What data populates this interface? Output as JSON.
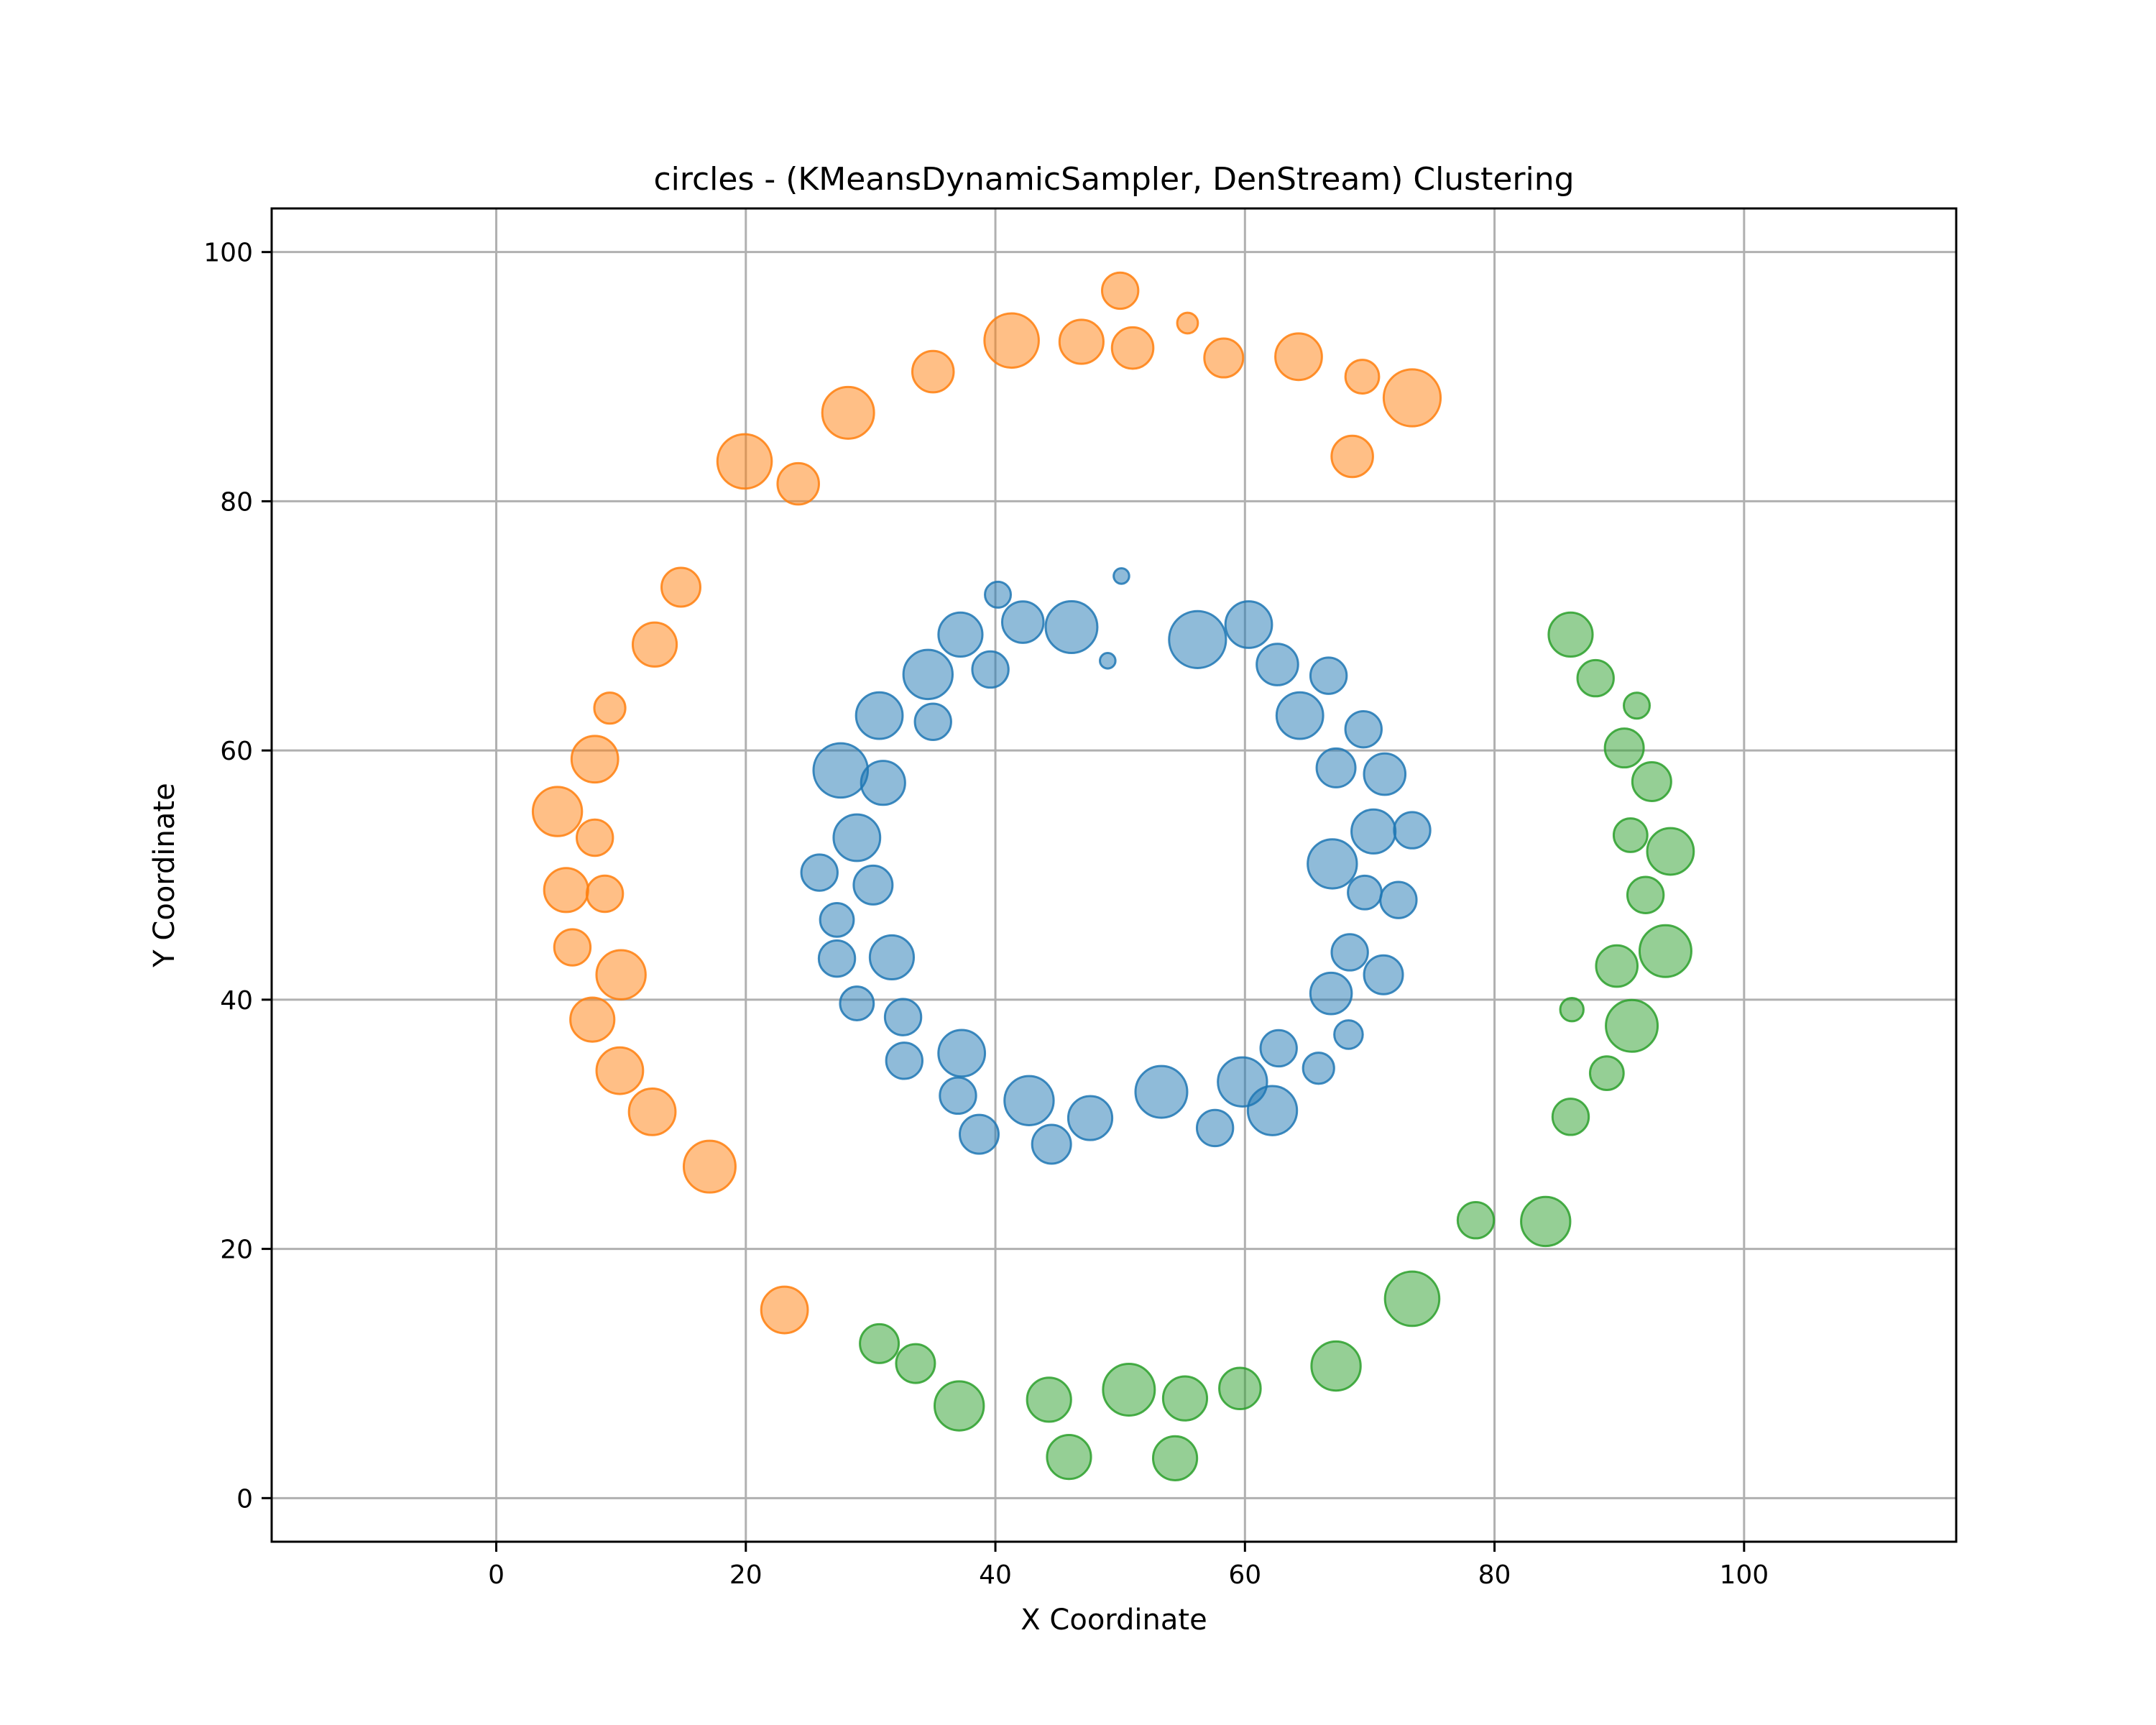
{
  "chart_data": {
    "type": "scatter",
    "title": "circles - (KMeansDynamicSampler, DenStream) Clustering",
    "xlabel": "X Coordinate",
    "ylabel": "Y Coordinate",
    "xlim": [
      -18,
      117
    ],
    "ylim": [
      -3.5,
      103.5
    ],
    "xticks": [
      0,
      20,
      40,
      60,
      80,
      100
    ],
    "yticks": [
      0,
      20,
      40,
      60,
      80,
      100
    ],
    "grid": true,
    "legend": null,
    "series": [
      {
        "color": "#1f77b4",
        "points": [
          {
            "x": 40.2,
            "y": 72.5,
            "s": 5
          },
          {
            "x": 42.2,
            "y": 70.3,
            "s": 8
          },
          {
            "x": 46.1,
            "y": 69.9,
            "s": 10
          },
          {
            "x": 50.1,
            "y": 74.0,
            "s": 3
          },
          {
            "x": 56.2,
            "y": 68.9,
            "s": 11
          },
          {
            "x": 60.3,
            "y": 70.1,
            "s": 9
          },
          {
            "x": 37.2,
            "y": 69.3,
            "s": 8.5
          },
          {
            "x": 39.6,
            "y": 66.5,
            "s": 7
          },
          {
            "x": 49.0,
            "y": 67.2,
            "s": 3
          },
          {
            "x": 34.6,
            "y": 66.1,
            "s": 9.5
          },
          {
            "x": 62.6,
            "y": 66.9,
            "s": 8
          },
          {
            "x": 66.7,
            "y": 66.0,
            "s": 7
          },
          {
            "x": 30.7,
            "y": 62.8,
            "s": 9
          },
          {
            "x": 35.0,
            "y": 62.3,
            "s": 7
          },
          {
            "x": 64.4,
            "y": 62.8,
            "s": 9
          },
          {
            "x": 69.5,
            "y": 61.7,
            "s": 7
          },
          {
            "x": 27.6,
            "y": 58.4,
            "s": 10.5
          },
          {
            "x": 31.0,
            "y": 57.4,
            "s": 8.5
          },
          {
            "x": 67.3,
            "y": 58.6,
            "s": 7.5
          },
          {
            "x": 71.2,
            "y": 58.1,
            "s": 8
          },
          {
            "x": 28.9,
            "y": 53.0,
            "s": 9
          },
          {
            "x": 70.3,
            "y": 53.5,
            "s": 8.5
          },
          {
            "x": 73.4,
            "y": 53.6,
            "s": 7
          },
          {
            "x": 25.9,
            "y": 50.2,
            "s": 7
          },
          {
            "x": 30.2,
            "y": 49.2,
            "s": 7.5
          },
          {
            "x": 67.0,
            "y": 50.9,
            "s": 9.5
          },
          {
            "x": 69.6,
            "y": 48.6,
            "s": 6.5
          },
          {
            "x": 72.3,
            "y": 48.0,
            "s": 7
          },
          {
            "x": 27.3,
            "y": 46.4,
            "s": 6.5
          },
          {
            "x": 27.3,
            "y": 43.3,
            "s": 7
          },
          {
            "x": 31.7,
            "y": 43.4,
            "s": 8.5
          },
          {
            "x": 68.4,
            "y": 43.8,
            "s": 7
          },
          {
            "x": 71.1,
            "y": 42.0,
            "s": 7.5
          },
          {
            "x": 28.9,
            "y": 39.7,
            "s": 6.5
          },
          {
            "x": 32.6,
            "y": 38.6,
            "s": 7
          },
          {
            "x": 66.9,
            "y": 40.5,
            "s": 8
          },
          {
            "x": 68.3,
            "y": 37.2,
            "s": 5.5
          },
          {
            "x": 32.7,
            "y": 35.1,
            "s": 7
          },
          {
            "x": 37.3,
            "y": 35.7,
            "s": 9
          },
          {
            "x": 62.7,
            "y": 36.1,
            "s": 7
          },
          {
            "x": 65.9,
            "y": 34.5,
            "s": 6
          },
          {
            "x": 37.0,
            "y": 32.3,
            "s": 7
          },
          {
            "x": 42.7,
            "y": 31.9,
            "s": 9.5
          },
          {
            "x": 47.6,
            "y": 30.5,
            "s": 8.5
          },
          {
            "x": 53.3,
            "y": 32.6,
            "s": 10
          },
          {
            "x": 59.8,
            "y": 33.4,
            "s": 9.5
          },
          {
            "x": 62.2,
            "y": 31.1,
            "s": 9.5
          },
          {
            "x": 38.7,
            "y": 29.2,
            "s": 7.5
          },
          {
            "x": 44.5,
            "y": 28.4,
            "s": 7.5
          },
          {
            "x": 57.6,
            "y": 29.7,
            "s": 7
          }
        ]
      },
      {
        "color": "#ff7f0e",
        "points": [
          {
            "x": 50.0,
            "y": 96.9,
            "s": 7
          },
          {
            "x": 55.4,
            "y": 94.3,
            "s": 4
          },
          {
            "x": 41.3,
            "y": 92.9,
            "s": 10.5
          },
          {
            "x": 46.9,
            "y": 92.8,
            "s": 8.5
          },
          {
            "x": 51.0,
            "y": 92.3,
            "s": 8
          },
          {
            "x": 35.0,
            "y": 90.4,
            "s": 8
          },
          {
            "x": 58.3,
            "y": 91.5,
            "s": 7.5
          },
          {
            "x": 64.3,
            "y": 91.6,
            "s": 9
          },
          {
            "x": 69.4,
            "y": 90.0,
            "s": 6.5
          },
          {
            "x": 73.4,
            "y": 88.3,
            "s": 11
          },
          {
            "x": 28.2,
            "y": 87.1,
            "s": 10
          },
          {
            "x": 68.6,
            "y": 83.6,
            "s": 8
          },
          {
            "x": 19.9,
            "y": 83.2,
            "s": 10.5
          },
          {
            "x": 24.2,
            "y": 81.4,
            "s": 8
          },
          {
            "x": 14.8,
            "y": 73.1,
            "s": 7.5
          },
          {
            "x": 12.7,
            "y": 68.5,
            "s": 8.5
          },
          {
            "x": 9.1,
            "y": 63.4,
            "s": 6
          },
          {
            "x": 7.9,
            "y": 59.3,
            "s": 9
          },
          {
            "x": 4.9,
            "y": 55.1,
            "s": 9.5
          },
          {
            "x": 7.9,
            "y": 53.0,
            "s": 7
          },
          {
            "x": 5.6,
            "y": 48.8,
            "s": 8.5
          },
          {
            "x": 8.7,
            "y": 48.5,
            "s": 7
          },
          {
            "x": 6.1,
            "y": 44.2,
            "s": 7
          },
          {
            "x": 10.0,
            "y": 42.0,
            "s": 9.5
          },
          {
            "x": 7.7,
            "y": 38.4,
            "s": 8.5
          },
          {
            "x": 9.9,
            "y": 34.3,
            "s": 9
          },
          {
            "x": 12.5,
            "y": 31.0,
            "s": 9
          },
          {
            "x": 17.1,
            "y": 26.6,
            "s": 10
          },
          {
            "x": 23.1,
            "y": 15.1,
            "s": 9
          }
        ]
      },
      {
        "color": "#2ca02c",
        "points": [
          {
            "x": 86.1,
            "y": 69.3,
            "s": 8.5
          },
          {
            "x": 88.1,
            "y": 65.8,
            "s": 7
          },
          {
            "x": 91.4,
            "y": 63.6,
            "s": 5
          },
          {
            "x": 90.4,
            "y": 60.2,
            "s": 7.5
          },
          {
            "x": 92.6,
            "y": 57.5,
            "s": 7.5
          },
          {
            "x": 90.9,
            "y": 53.2,
            "s": 6.5
          },
          {
            "x": 94.1,
            "y": 51.9,
            "s": 9
          },
          {
            "x": 92.1,
            "y": 48.4,
            "s": 7
          },
          {
            "x": 93.7,
            "y": 43.9,
            "s": 10
          },
          {
            "x": 89.8,
            "y": 42.7,
            "s": 8
          },
          {
            "x": 86.2,
            "y": 39.2,
            "s": 4.5
          },
          {
            "x": 91.0,
            "y": 37.9,
            "s": 10
          },
          {
            "x": 89.0,
            "y": 34.1,
            "s": 6.5
          },
          {
            "x": 86.1,
            "y": 30.6,
            "s": 7
          },
          {
            "x": 78.5,
            "y": 22.3,
            "s": 7
          },
          {
            "x": 84.1,
            "y": 22.2,
            "s": 9.5
          },
          {
            "x": 73.4,
            "y": 16.0,
            "s": 10.5
          },
          {
            "x": 30.7,
            "y": 12.4,
            "s": 7.5
          },
          {
            "x": 33.6,
            "y": 10.8,
            "s": 7.5
          },
          {
            "x": 67.3,
            "y": 10.6,
            "s": 9.5
          },
          {
            "x": 37.1,
            "y": 7.4,
            "s": 9.5
          },
          {
            "x": 44.3,
            "y": 7.9,
            "s": 8.5
          },
          {
            "x": 50.7,
            "y": 8.7,
            "s": 10
          },
          {
            "x": 55.2,
            "y": 8.0,
            "s": 8.5
          },
          {
            "x": 59.6,
            "y": 8.8,
            "s": 8
          },
          {
            "x": 45.9,
            "y": 3.3,
            "s": 8.5
          },
          {
            "x": 54.4,
            "y": 3.2,
            "s": 8.5
          }
        ]
      }
    ]
  }
}
